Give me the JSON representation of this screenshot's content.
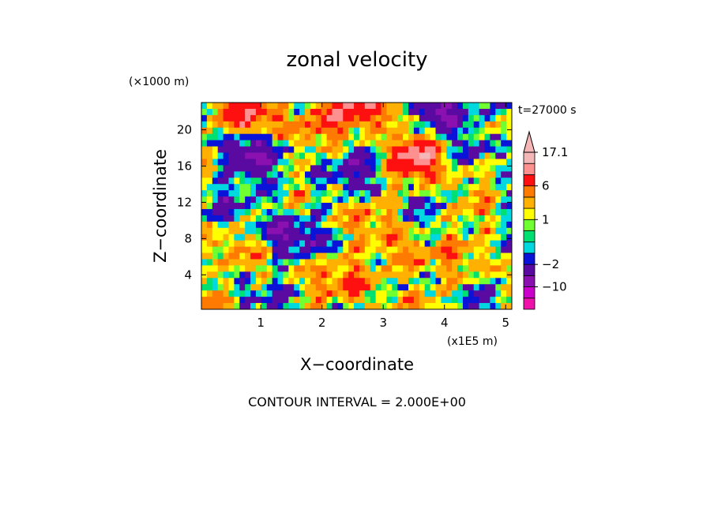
{
  "chart_data": {
    "type": "heatmap",
    "title": "zonal velocity",
    "xlabel": "X−coordinate",
    "ylabel": "Z−coordinate",
    "x_unit_label": "(x1E5 m)",
    "y_unit_label": "(×1000 m)",
    "time_label": "t=27000 s",
    "footer": "CONTOUR INTERVAL = 2.000E+00",
    "xlim": [
      0.03,
      5.1
    ],
    "ylim": [
      0.2,
      23
    ],
    "x_ticks": [
      1,
      2,
      3,
      4,
      5
    ],
    "x_tick_labels": [
      "1",
      "2",
      "3",
      "4",
      "5"
    ],
    "y_ticks": [
      4,
      8,
      12,
      16,
      20
    ],
    "y_tick_labels": [
      "4",
      "8",
      "12",
      "16",
      "20"
    ],
    "colorbar": {
      "levels": [
        -18,
        -14,
        -10,
        -6,
        -2,
        -1,
        0,
        0.5,
        1,
        2,
        4,
        6,
        10,
        14,
        17.1
      ],
      "colors": [
        "#ee11aa",
        "#cc00cc",
        "#8a10b0",
        "#5a0aa0",
        "#0a14d8",
        "#00d8e0",
        "#00e070",
        "#70ff30",
        "#ffff00",
        "#ffb000",
        "#ff7a00",
        "#ff1010",
        "#ff9090",
        "#f4b6b6"
      ],
      "tick_labels": [
        "17.1",
        "6",
        "1",
        "−2",
        "−10"
      ],
      "tick_values": [
        17.1,
        6,
        1,
        -2,
        -10
      ]
    },
    "field": {
      "grid": "57 x 33 cells, smooth turbulent field; values in m/s",
      "min": -14,
      "max": 11,
      "features": [
        {
          "x": 3.95,
          "z": 22.3,
          "value": -12
        },
        {
          "x": 3.55,
          "z": 17.2,
          "value": 9
        },
        {
          "x": 0.85,
          "z": 21.0,
          "value": 8
        },
        {
          "x": 2.4,
          "z": 22.2,
          "value": 8
        },
        {
          "x": 3.0,
          "z": 22.3,
          "value": 7
        },
        {
          "x": 0.75,
          "z": 17.5,
          "value": -6
        },
        {
          "x": 1.1,
          "z": 14.0,
          "value": -5
        },
        {
          "x": 1.3,
          "z": 8.6,
          "value": -5
        },
        {
          "x": 2.75,
          "z": 16.5,
          "value": -4
        },
        {
          "x": 4.95,
          "z": 12.8,
          "value": -4
        },
        {
          "x": 3.3,
          "z": 5.7,
          "value": 5
        },
        {
          "x": 2.6,
          "z": 3.5,
          "value": 3
        },
        {
          "x": 4.35,
          "z": 11.5,
          "value": 3
        }
      ]
    }
  }
}
